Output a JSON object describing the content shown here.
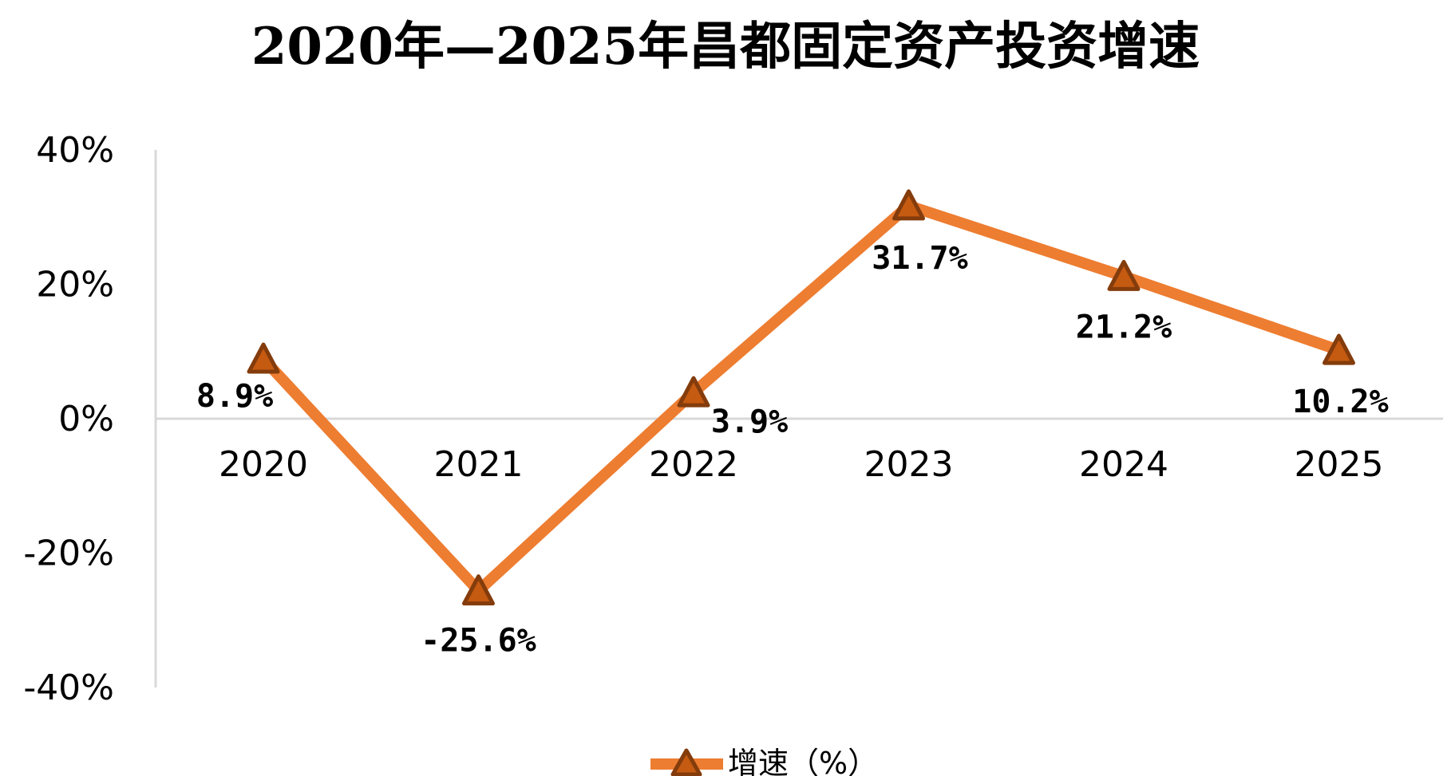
{
  "chart_data": {
    "type": "line",
    "title": "2020年—2025年昌都固定资产投资增速",
    "categories": [
      "2020",
      "2021",
      "2022",
      "2023",
      "2024",
      "2025"
    ],
    "series": [
      {
        "name": "增速（%）",
        "values": [
          8.9,
          -25.6,
          3.9,
          31.7,
          21.2,
          10.2
        ],
        "labels": [
          "8.9%",
          "-25.6%",
          "3.9%",
          "31.7%",
          "21.2%",
          "10.2%"
        ],
        "color": "#ED7D31",
        "marker": "triangle",
        "marker_fill": "#C55A11",
        "marker_stroke": "#843C0C"
      }
    ],
    "y_ticks": [
      40,
      20,
      0,
      -20,
      -40
    ],
    "y_tick_labels": [
      "40%",
      "20%",
      "0%",
      "-20%",
      "-40%"
    ],
    "ylim": [
      -40,
      40
    ],
    "grid": false,
    "legend": "bottom"
  }
}
